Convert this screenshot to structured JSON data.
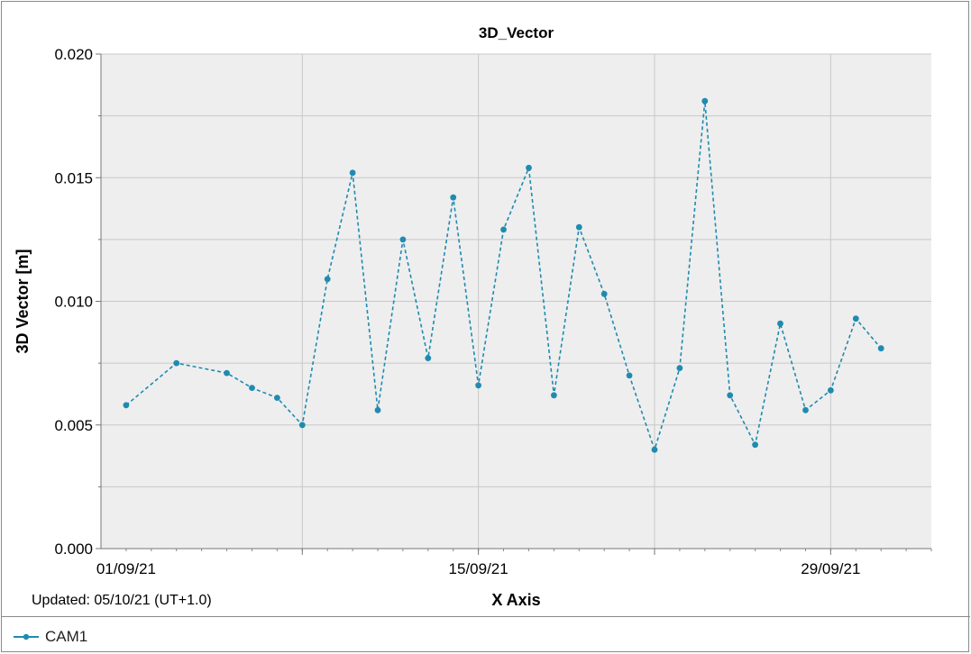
{
  "colors": {
    "plot_bg": "#eeeeee",
    "grid": "#c8c8c8",
    "series": "#1f8bb0",
    "text": "#000000"
  },
  "chart_data": {
    "type": "line",
    "title": "3D_Vector",
    "xlabel": "X Axis",
    "ylabel": "3D Vector [m]",
    "footnote": "Updated: 05/10/21 (UT+1.0)",
    "x_type": "date",
    "xlim": [
      "2021-08-31",
      "2021-10-03"
    ],
    "ylim": [
      0,
      0.02
    ],
    "x_ticks": [
      {
        "date": "2021-09-01",
        "label": "01/09/21"
      },
      {
        "date": "2021-09-15",
        "label": "15/09/21"
      },
      {
        "date": "2021-09-29",
        "label": "29/09/21"
      }
    ],
    "x_grid_dates": [
      "2021-09-08",
      "2021-09-15",
      "2021-09-22",
      "2021-09-29"
    ],
    "y_ticks": [
      0.0,
      0.005,
      0.01,
      0.015,
      0.02
    ],
    "y_tick_labels": [
      "0.000",
      "0.005",
      "0.010",
      "0.015",
      "0.020"
    ],
    "y_minor_ticks": [
      0.0025,
      0.0075,
      0.0125,
      0.0175
    ],
    "grid": true,
    "legend_position": "bottom-left",
    "line_style": "dashed",
    "marker": "circle",
    "series": [
      {
        "name": "CAM1",
        "x": [
          "2021-09-01",
          "2021-09-03",
          "2021-09-05",
          "2021-09-06",
          "2021-09-07",
          "2021-09-08",
          "2021-09-09",
          "2021-09-10",
          "2021-09-11",
          "2021-09-12",
          "2021-09-13",
          "2021-09-14",
          "2021-09-15",
          "2021-09-16",
          "2021-09-17",
          "2021-09-18",
          "2021-09-19",
          "2021-09-20",
          "2021-09-21",
          "2021-09-22",
          "2021-09-23",
          "2021-09-24",
          "2021-09-25",
          "2021-09-26",
          "2021-09-27",
          "2021-09-28",
          "2021-09-29",
          "2021-09-30",
          "2021-10-01"
        ],
        "values": [
          0.0058,
          0.0075,
          0.0071,
          0.0065,
          0.0061,
          0.005,
          0.0109,
          0.0152,
          0.0056,
          0.0125,
          0.0077,
          0.0142,
          0.0066,
          0.0129,
          0.0154,
          0.0062,
          0.013,
          0.0103,
          0.007,
          0.004,
          0.0073,
          0.0181,
          0.0062,
          0.0042,
          0.0091,
          0.0056,
          0.0064,
          0.0093,
          0.0081
        ]
      }
    ]
  }
}
